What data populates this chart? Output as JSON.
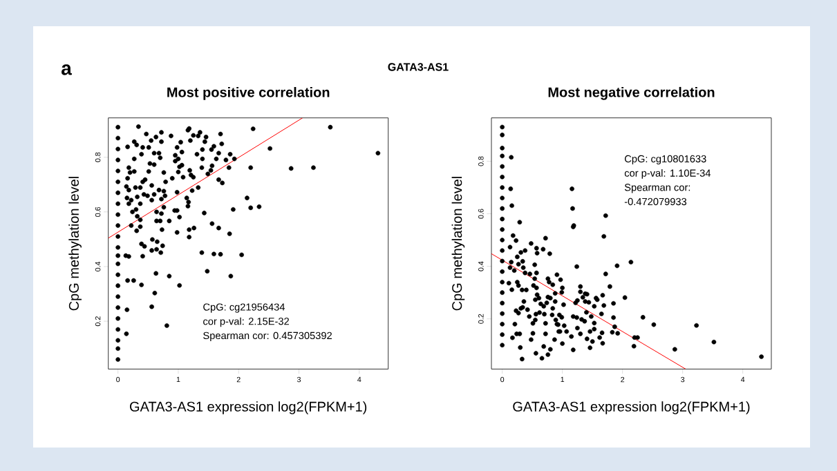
{
  "chart_data": [
    {
      "type": "scatter",
      "title": "Most positive correlation",
      "xlabel": "GATA3-AS1 expression log2(FPKM+1)",
      "ylabel": "CpG methylation level",
      "xlim": [
        -0.16,
        4.48
      ],
      "ylim": [
        0.025,
        0.944
      ],
      "xticks": [
        0,
        1,
        2,
        3,
        4
      ],
      "yticks": [
        0.2,
        0.4,
        0.6,
        0.8
      ],
      "annotations": [
        "a",
        "GATA3-AS1",
        "CpG: cg21956434",
        "cor p-val: 2.15E-32",
        "Spearman cor: 0.457305392"
      ],
      "series": [
        {
          "color": "#000000",
          "marker": "circle",
          "x": [
            0,
            0,
            0,
            0,
            0,
            0,
            0,
            0,
            0,
            0,
            0,
            0,
            0,
            0,
            0,
            0,
            0,
            0,
            0,
            0,
            0,
            0,
            0,
            0.34,
            0.16,
            0.27,
            0.31,
            0.47,
            0.55,
            0.63,
            0.72,
            0.72,
            0.41,
            0.51,
            0.88,
            1.16,
            1.18,
            1.2,
            1.25,
            1.36,
            1.33,
            1.46,
            1.44,
            1.7,
            1.59,
            1.72,
            1.67,
            1.55,
            1.4,
            1.31,
            1.06,
            0.98,
            1.04,
            0.95,
            1.0,
            0.95,
            1.06,
            1.02,
            1.0,
            1.08,
            1.19,
            1.21,
            1.25,
            1.23,
            1.33,
            1.4,
            1.39,
            1.49,
            1.54,
            1.56,
            1.63,
            1.67,
            1.73,
            1.79,
            1.86,
            1.84,
            1.93,
            2.24,
            2.52,
            2.2,
            2.87,
            3.24,
            3.52,
            4.31,
            2.14,
            2.2,
            2.34,
            1.91,
            1.43,
            1.56,
            1.67,
            1.85,
            1.39,
            1.59,
            1.7,
            2.05,
            1.48,
            1.87,
            1.18,
            1.18,
            1.26,
            1.16,
            1.17,
            1.14,
            0.98,
            1.02,
            0.94,
            0.98,
            0.85,
            0.98,
            0.9,
            0.76,
            0.79,
            0.68,
            0.76,
            0.78,
            0.72,
            0.76,
            0.64,
            0.72,
            0.64,
            0.7,
            0.73,
            0.6,
            0.56,
            0.56,
            0.49,
            0.43,
            0.37,
            0.41,
            0.45,
            0.51,
            0.53,
            0.6,
            0.68,
            0.7,
            0.6,
            0.39,
            0.27,
            0.18,
            0.2,
            0.27,
            0.16,
            0.14,
            0.18,
            0.29,
            0.15,
            0.22,
            0.18,
            0.32,
            0.37,
            0.24,
            0.3,
            0.32,
            0.37,
            0.22,
            0.31,
            0.37,
            0.13,
            0.18,
            0.41,
            0.39,
            0.44,
            0.56,
            0.57,
            0.65,
            0.64,
            0.71,
            0.74,
            0.16,
            0.26,
            0.39,
            0.63,
            0.61,
            0.56,
            0.85,
            1.02,
            0.15,
            0.81,
            0.14
          ],
          "values": [
            0.91,
            0.87,
            0.83,
            0.79,
            0.75,
            0.71,
            0.67,
            0.63,
            0.59,
            0.55,
            0.51,
            0.47,
            0.44,
            0.41,
            0.37,
            0.33,
            0.29,
            0.25,
            0.21,
            0.17,
            0.13,
            0.1,
            0.06,
            0.912,
            0.838,
            0.857,
            0.845,
            0.885,
            0.861,
            0.874,
            0.891,
            0.857,
            0.836,
            0.836,
            0.878,
            0.899,
            0.905,
            0.861,
            0.88,
            0.891,
            0.878,
            0.874,
            0.857,
            0.885,
            0.84,
            0.849,
            0.815,
            0.828,
            0.828,
            0.811,
            0.819,
            0.836,
            0.855,
            0.807,
            0.794,
            0.786,
            0.771,
            0.765,
            0.746,
            0.727,
            0.752,
            0.735,
            0.727,
            0.678,
            0.689,
            0.794,
            0.762,
            0.739,
            0.752,
            0.769,
            0.794,
            0.718,
            0.706,
            0.79,
            0.811,
            0.762,
            0.794,
            0.904,
            0.832,
            0.762,
            0.759,
            0.762,
            0.91,
            0.815,
            0.651,
            0.615,
            0.619,
            0.609,
            0.596,
            0.557,
            0.541,
            0.52,
            0.451,
            0.446,
            0.445,
            0.443,
            0.383,
            0.365,
            0.508,
            0.535,
            0.541,
            0.621,
            0.636,
            0.651,
            0.605,
            0.581,
            0.605,
            0.525,
            0.567,
            0.672,
            0.723,
            0.744,
            0.71,
            0.68,
            0.676,
            0.659,
            0.647,
            0.617,
            0.6,
            0.594,
            0.567,
            0.567,
            0.535,
            0.664,
            0.697,
            0.643,
            0.659,
            0.664,
            0.689,
            0.71,
            0.718,
            0.748,
            0.777,
            0.773,
            0.815,
            0.798,
            0.815,
            0.811,
            0.794,
            0.762,
            0.744,
            0.748,
            0.723,
            0.693,
            0.68,
            0.689,
            0.651,
            0.643,
            0.63,
            0.655,
            0.63,
            0.6,
            0.609,
            0.584,
            0.571,
            0.55,
            0.531,
            0.546,
            0.44,
            0.437,
            0.438,
            0.483,
            0.474,
            0.459,
            0.499,
            0.491,
            0.463,
            0.451,
            0.476,
            0.349,
            0.349,
            0.333,
            0.375,
            0.303,
            0.253,
            0.365,
            0.331,
            0.242,
            0.184,
            0.154
          ]
        },
        {
          "type": "line",
          "color": "#ff0000",
          "marker": "none",
          "x": [
            -0.16,
            3.06
          ],
          "values": [
            0.504,
            0.944
          ]
        }
      ]
    },
    {
      "type": "scatter",
      "title": "Most negative correlation",
      "xlabel": "GATA3-AS1 expression log2(FPKM+1)",
      "ylabel": "CpG methylation level",
      "xlim": [
        -0.18,
        4.475
      ],
      "ylim": [
        0.009,
        0.965
      ],
      "xticks": [
        0,
        1,
        2,
        3,
        4
      ],
      "yticks": [
        0.2,
        0.4,
        0.6,
        0.8
      ],
      "annotations": [
        "CpG: cg10801633",
        "cor p-val: 1.10E-34",
        "Spearman cor:",
        "-0.472079933"
      ],
      "series": [
        {
          "color": "#000000",
          "marker": "circle",
          "x": [
            0,
            0,
            0,
            0,
            0,
            0,
            0,
            0,
            0,
            0,
            0,
            0,
            0,
            0,
            0,
            0,
            0,
            0,
            0,
            0,
            0,
            0,
            0.15,
            0.14,
            0.16,
            0.29,
            1.16,
            1.17,
            1.18,
            1.19,
            1.72,
            1.69,
            1.24,
            1.72,
            1.91,
            2.14,
            1.79,
            2.04,
            1.85,
            1.85,
            1.87,
            2.34,
            2.52,
            3.23,
            3.52,
            4.31,
            2.87,
            2.2,
            2.25,
            2.19,
            1.92,
            1.83,
            1.67,
            1.66,
            1.65,
            1.67,
            1.69,
            1.56,
            1.58,
            1.53,
            1.48,
            1.53,
            1.53,
            1.46,
            1.41,
            1.5,
            1.46,
            1.62,
            1.38,
            1.41,
            1.3,
            1.3,
            1.34,
            1.25,
            1.22,
            1.38,
            1.44,
            1.4,
            1.37,
            1.18,
            1.24,
            1.32,
            1.25,
            1.3,
            1.15,
            1.18,
            1.07,
            1.03,
            1.0,
            0.96,
            0.93,
            0.95,
            0.99,
            0.91,
            0.94,
            1.02,
            0.99,
            1.0,
            0.97,
            0.91,
            0.84,
            0.88,
            0.8,
            0.88,
            0.84,
            0.89,
            0.83,
            0.76,
            0.78,
            0.76,
            0.72,
            0.68,
            0.79,
            0.57,
            0.58,
            0.48,
            0.38,
            0.31,
            0.23,
            0.18,
            0.13,
            0.25,
            0.15,
            0.13,
            0.2,
            0.27,
            0.34,
            0.35,
            0.38,
            0.46,
            0.54,
            0.57,
            0.54,
            0.52,
            0.57,
            0.58,
            0.55,
            0.61,
            0.64,
            0.62,
            0.56,
            0.55,
            0.51,
            0.51,
            0.48,
            0.56,
            0.66,
            0.69,
            0.72,
            0.72,
            0.7,
            0.69,
            0.74,
            0.33,
            0.3,
            0.24,
            0.17,
            0.21,
            0.23,
            0.27,
            0.31,
            0.36,
            0.34,
            0.42,
            0.45,
            0.4,
            0.33,
            0.25,
            0.27,
            0.11,
            0.16,
            0.8,
            0.87,
            0.76,
            0.29
          ],
          "values": [
            0.93,
            0.9,
            0.85,
            0.82,
            0.78,
            0.74,
            0.7,
            0.66,
            0.62,
            0.58,
            0.54,
            0.5,
            0.46,
            0.42,
            0.38,
            0.34,
            0.3,
            0.26,
            0.22,
            0.18,
            0.14,
            0.1,
            0.815,
            0.695,
            0.631,
            0.568,
            0.695,
            0.62,
            0.55,
            0.555,
            0.593,
            0.514,
            0.399,
            0.371,
            0.402,
            0.416,
            0.323,
            0.281,
            0.259,
            0.205,
            0.17,
            0.206,
            0.178,
            0.175,
            0.112,
            0.056,
            0.084,
            0.129,
            0.129,
            0.096,
            0.145,
            0.149,
            0.107,
            0.147,
            0.219,
            0.29,
            0.251,
            0.279,
            0.273,
            0.248,
            0.209,
            0.184,
            0.161,
            0.152,
            0.124,
            0.114,
            0.09,
            0.129,
            0.296,
            0.294,
            0.323,
            0.303,
            0.282,
            0.27,
            0.261,
            0.266,
            0.263,
            0.225,
            0.191,
            0.209,
            0.205,
            0.198,
            0.165,
            0.143,
            0.133,
            0.082,
            0.152,
            0.174,
            0.106,
            0.152,
            0.178,
            0.215,
            0.206,
            0.18,
            0.152,
            0.254,
            0.301,
            0.318,
            0.349,
            0.368,
            0.33,
            0.297,
            0.279,
            0.266,
            0.24,
            0.196,
            0.215,
            0.283,
            0.34,
            0.353,
            0.507,
            0.465,
            0.448,
            0.469,
            0.45,
            0.487,
            0.46,
            0.453,
            0.498,
            0.517,
            0.473,
            0.436,
            0.416,
            0.395,
            0.384,
            0.408,
            0.419,
            0.395,
            0.375,
            0.371,
            0.406,
            0.375,
            0.353,
            0.327,
            0.318,
            0.292,
            0.273,
            0.279,
            0.257,
            0.224,
            0.218,
            0.196,
            0.183,
            0.145,
            0.121,
            0.069,
            0.05,
            0.095,
            0.143,
            0.183,
            0.218,
            0.248,
            0.261,
            0.047,
            0.091,
            0.143,
            0.128,
            0.18,
            0.231,
            0.222,
            0.24,
            0.266,
            0.244,
            0.235,
            0.209,
            0.31,
            0.31,
            0.34,
            0.327,
            0.336,
            0.311,
            0.084,
            0.121,
            0.064,
            0.143
          ]
        },
        {
          "type": "line",
          "color": "#ff0000",
          "marker": "none",
          "x": [
            -0.18,
            3.05
          ],
          "values": [
            0.448,
            0.009
          ]
        }
      ]
    }
  ]
}
